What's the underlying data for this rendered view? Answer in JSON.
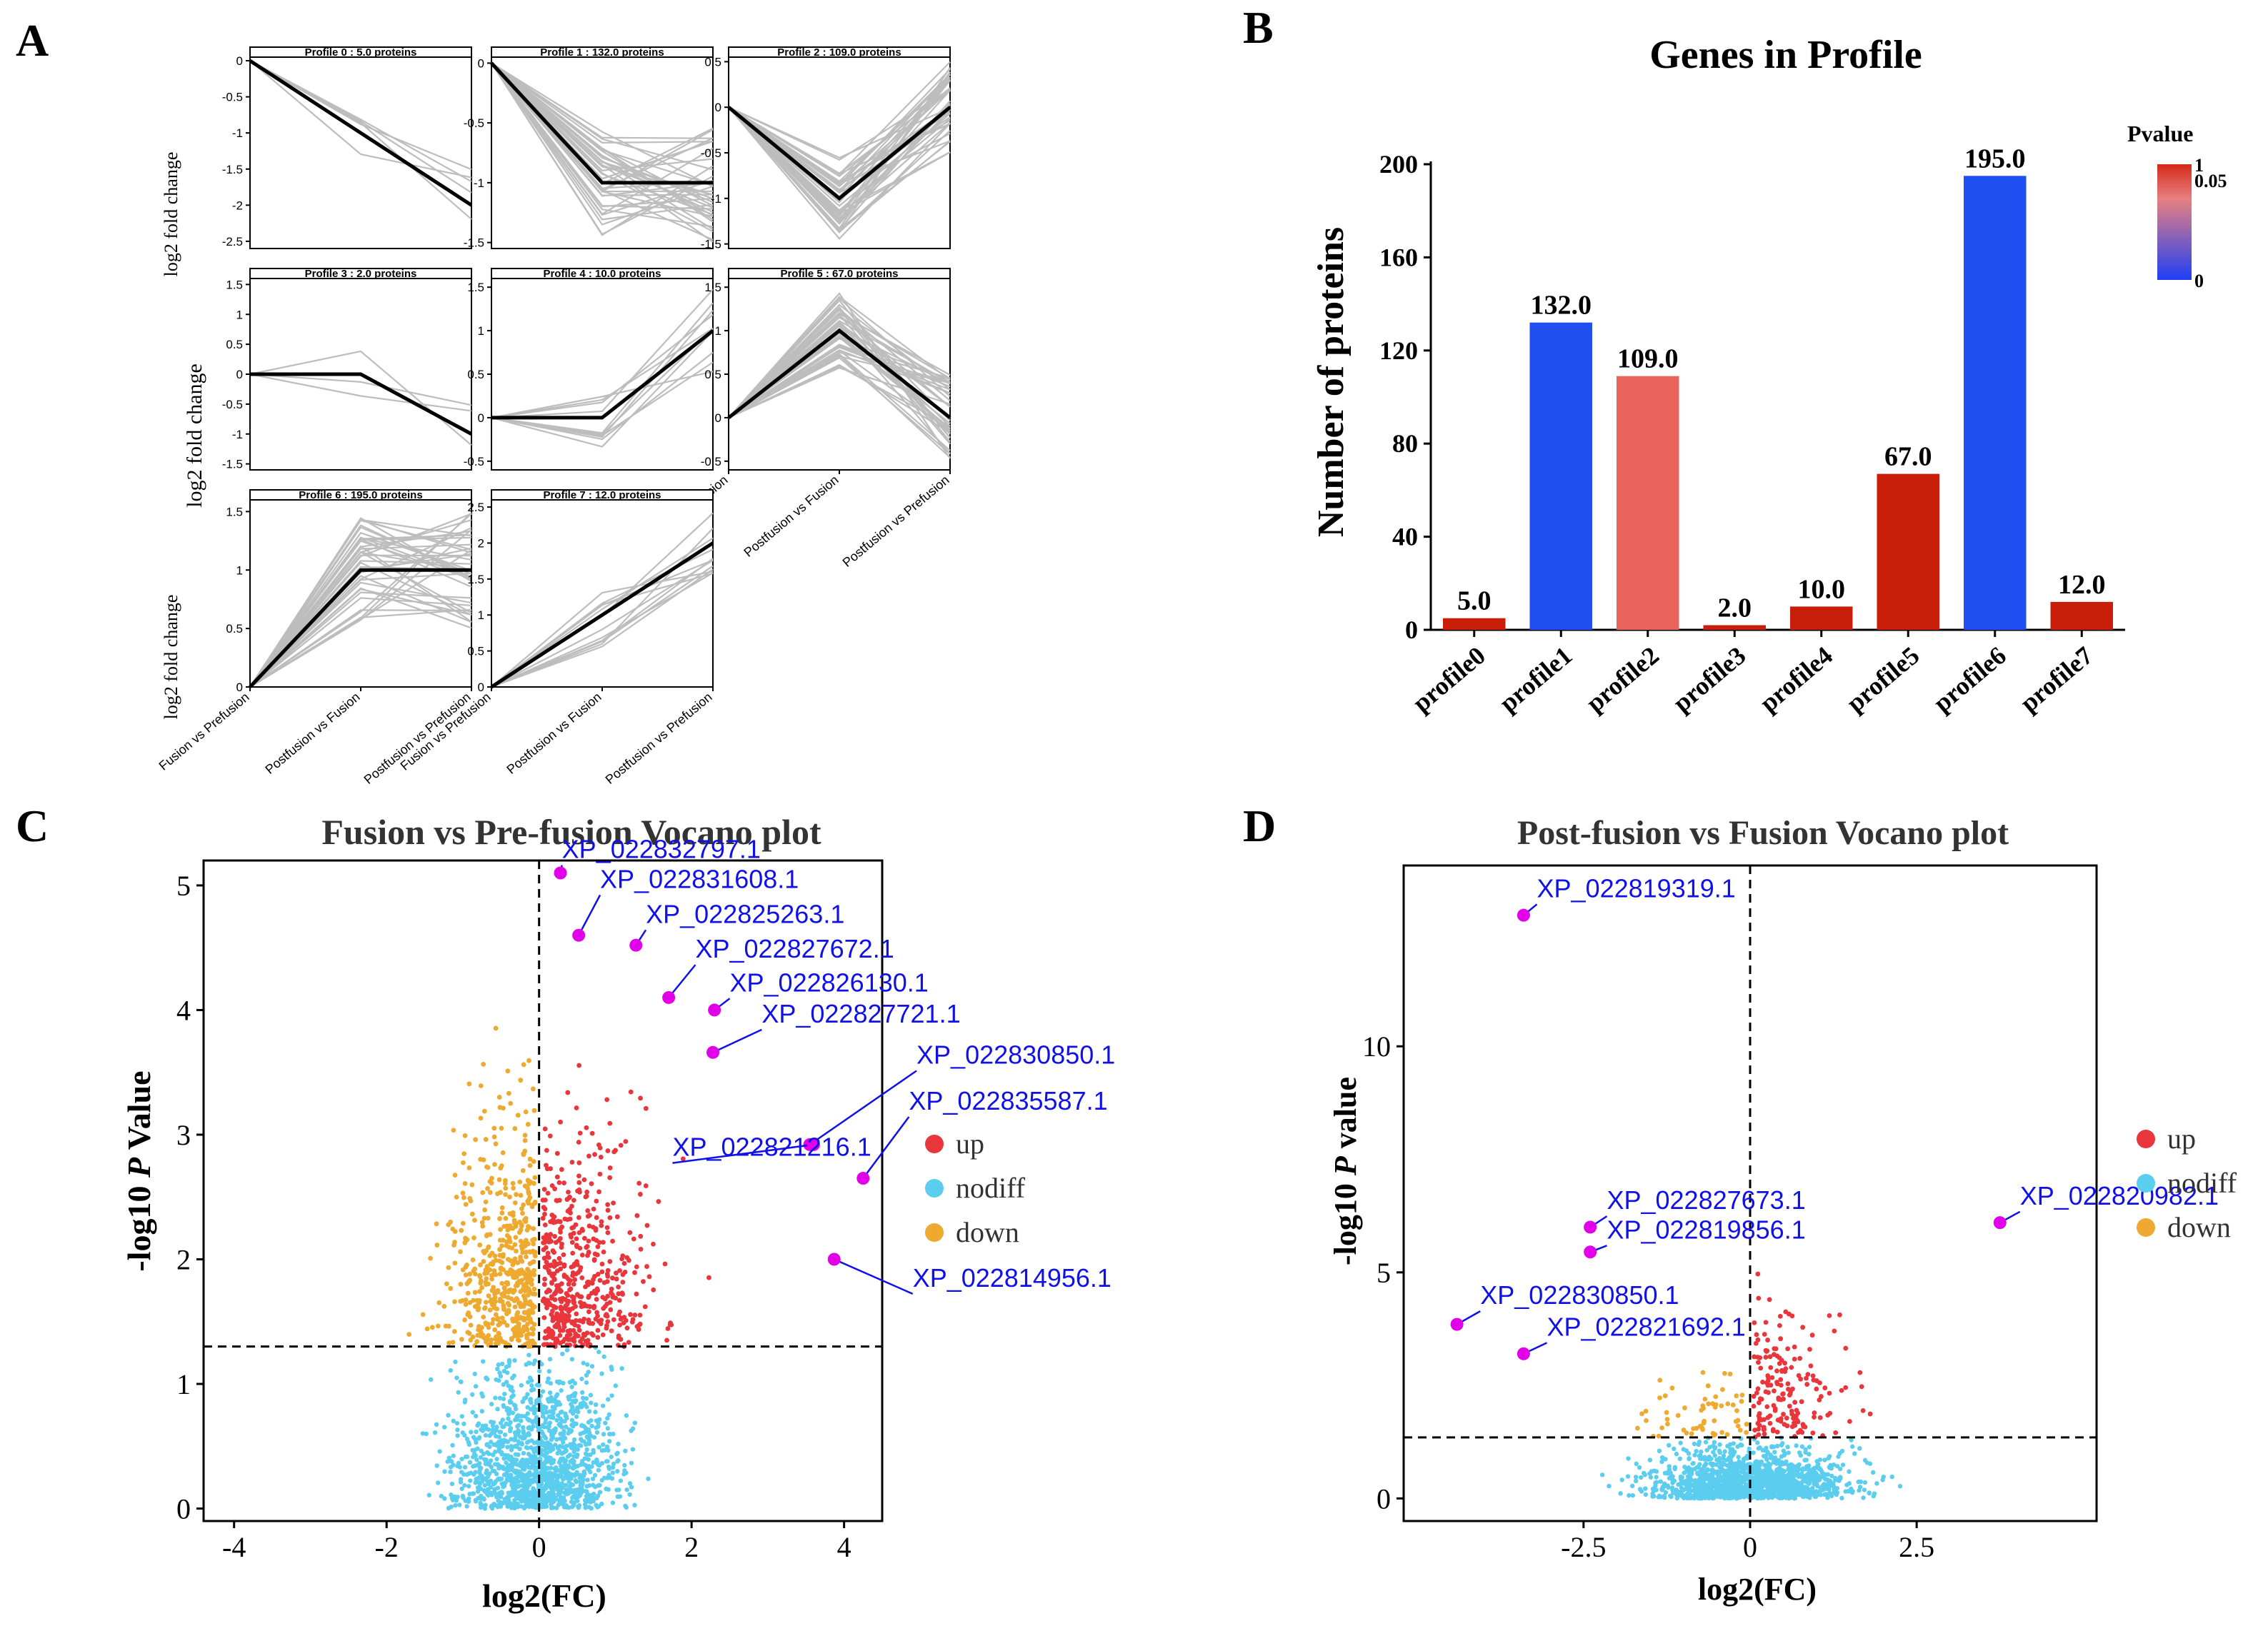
{
  "panels": {
    "A": "A",
    "B": "B",
    "C": "C",
    "D": "D"
  },
  "colors": {
    "up": "#e8363c",
    "nodiff": "#5bcdef",
    "down": "#eeaa30",
    "highlight": "#e200e8",
    "label": "#1010e8",
    "profile_line": "#bdbdbd",
    "mean_line": "#000000",
    "p_high": "#c81e0a",
    "p_mid": "#e8645a",
    "p_low": "#1f4ff0"
  },
  "chart_data": [
    {
      "type": "line",
      "panel": "A",
      "ylabel": "log2 fold change",
      "conditions": [
        "Fusion vs Prefusion",
        "Postfusion vs Fusion",
        "Postfusion vs Prefusion"
      ],
      "profiles": [
        {
          "title": "Profile 0 : 5.0 proteins",
          "mean": [
            0,
            -1,
            -2
          ],
          "yticks": [
            0.0,
            -0.5,
            -1.0,
            -1.5,
            -2.0,
            -2.5
          ],
          "ylim": [
            -2.6,
            0.05
          ]
        },
        {
          "title": "Profile 1 : 132.0 proteins",
          "mean": [
            0,
            -1,
            -1
          ],
          "yticks": [
            0.0,
            -0.5,
            -1.0,
            -1.5
          ],
          "ylim": [
            -1.55,
            0.05
          ]
        },
        {
          "title": "Profile 2 : 109.0 proteins",
          "mean": [
            0,
            -1,
            0
          ],
          "yticks": [
            0.5,
            0.0,
            -0.5,
            -1.0,
            -1.5
          ],
          "ylim": [
            -1.55,
            0.55
          ]
        },
        {
          "title": "Profile 3 : 2.0 proteins",
          "mean": [
            0,
            0,
            -1
          ],
          "yticks": [
            1.5,
            1.0,
            0.5,
            0.0,
            -0.5,
            -1.0,
            -1.5
          ],
          "ylim": [
            -1.6,
            1.6
          ]
        },
        {
          "title": "Profile 4 : 10.0 proteins",
          "mean": [
            0,
            0,
            1
          ],
          "yticks": [
            1.5,
            1.0,
            0.5,
            0.0,
            -0.5
          ],
          "ylim": [
            -0.6,
            1.6
          ]
        },
        {
          "title": "Profile 5 : 67.0 proteins",
          "mean": [
            0,
            1,
            0
          ],
          "yticks": [
            1.5,
            1.0,
            0.5,
            0.0,
            -0.5
          ],
          "ylim": [
            -0.6,
            1.6
          ]
        },
        {
          "title": "Profile 6 : 195.0 proteins",
          "mean": [
            0,
            1,
            1
          ],
          "yticks": [
            1.5,
            1.0,
            0.5,
            0.0
          ],
          "ylim": [
            0,
            1.6
          ]
        },
        {
          "title": "Profile 7 : 12.0 proteins",
          "mean": [
            0,
            1,
            2
          ],
          "yticks": [
            2.5,
            2.0,
            1.5,
            1.0,
            0.5,
            0.0
          ],
          "ylim": [
            0,
            2.6
          ]
        }
      ]
    },
    {
      "type": "bar",
      "panel": "B",
      "title": "Genes in Profile",
      "ylabel": "Number of proteins",
      "categories": [
        "profile0",
        "profile1",
        "profile2",
        "profile3",
        "profile4",
        "profile5",
        "profile6",
        "profile7"
      ],
      "values": [
        5.0,
        132.0,
        109.0,
        2.0,
        10.0,
        67.0,
        195.0,
        12.0
      ],
      "value_labels": [
        "5.0",
        "132.0",
        "109.0",
        "2.0",
        "10.0",
        "67.0",
        "195.0",
        "12.0"
      ],
      "pvalue_class": [
        "high",
        "low",
        "mid",
        "high",
        "high",
        "high",
        "low",
        "high"
      ],
      "ylim": [
        0,
        200
      ],
      "yticks": [
        "0",
        "40",
        "80",
        "120",
        "160",
        "200"
      ],
      "legend": {
        "title": "Pvalue",
        "labels": [
          "1",
          "0.05",
          "0"
        ]
      }
    },
    {
      "type": "scatter",
      "panel": "C",
      "title": "Fusion vs Pre-fusion Vocano plot",
      "xlabel": "log2(FC)",
      "ylabel": "-log10 P Value",
      "xlim": [
        -4.4,
        4.5
      ],
      "ylim": [
        -0.1,
        5.2
      ],
      "xticks": [
        "-4",
        "-2",
        "0",
        "2",
        "4"
      ],
      "yticks": [
        "0",
        "1",
        "2",
        "3",
        "4",
        "5"
      ],
      "threshold_y": 1.3,
      "legend": [
        "up",
        "nodiff",
        "down"
      ],
      "highlights": [
        {
          "label": "XP_022832797.1",
          "x": 0.28,
          "y": 5.1,
          "lx": 0.3,
          "ly": 5.22
        },
        {
          "label": "XP_022831608.1",
          "x": 0.52,
          "y": 4.6,
          "lx": 0.8,
          "ly": 4.98
        },
        {
          "label": "XP_022825263.1",
          "x": 1.27,
          "y": 4.52,
          "lx": 1.4,
          "ly": 4.7
        },
        {
          "label": "XP_022827672.1",
          "x": 1.7,
          "y": 4.1,
          "lx": 2.05,
          "ly": 4.42
        },
        {
          "label": "XP_022826130.1",
          "x": 2.3,
          "y": 4.0,
          "lx": 2.5,
          "ly": 4.15
        },
        {
          "label": "XP_022827721.1",
          "x": 2.28,
          "y": 3.66,
          "lx": 2.92,
          "ly": 3.9
        },
        {
          "label": "XP_022830850.1",
          "x": 3.55,
          "y": 2.92,
          "lx": 4.95,
          "ly": 3.57
        },
        {
          "label": "XP_022835587.1",
          "x": 4.25,
          "y": 2.65,
          "lx": 4.85,
          "ly": 3.2
        },
        {
          "label": "XP_022821216.1",
          "x": 3.6,
          "y": 2.92,
          "lx": 1.75,
          "ly": 2.83
        },
        {
          "label": "XP_022814956.1",
          "x": 3.87,
          "y": 2.0,
          "lx": 4.9,
          "ly": 1.78
        }
      ]
    },
    {
      "type": "scatter",
      "panel": "D",
      "title": "Post-fusion vs Fusion Vocano plot",
      "xlabel": "log2(FC)",
      "ylabel": "-log10 P value",
      "xlim": [
        -5.2,
        5.2
      ],
      "ylim": [
        -0.5,
        14.0
      ],
      "xticks": [
        "-2.5",
        "0",
        "2.5"
      ],
      "yticks": [
        "0",
        "5",
        "10"
      ],
      "threshold_y": 1.35,
      "legend": [
        "up",
        "nodiff",
        "down"
      ],
      "highlights": [
        {
          "label": "XP_022819319.1",
          "x": -3.4,
          "y": 12.9,
          "lx": -3.2,
          "ly": 13.3
        },
        {
          "label": "XP_022827673.1",
          "x": -2.4,
          "y": 6.0,
          "lx": -2.15,
          "ly": 6.4
        },
        {
          "label": "XP_022819856.1",
          "x": -2.4,
          "y": 5.45,
          "lx": -2.15,
          "ly": 5.75
        },
        {
          "label": "XP_022830850.1",
          "x": -4.4,
          "y": 3.85,
          "lx": -4.05,
          "ly": 4.3
        },
        {
          "label": "XP_022821692.1",
          "x": -3.4,
          "y": 3.2,
          "lx": -3.05,
          "ly": 3.6
        },
        {
          "label": "XP_022820982.1",
          "x": 3.75,
          "y": 6.1,
          "lx": 4.05,
          "ly": 6.5
        }
      ]
    }
  ]
}
